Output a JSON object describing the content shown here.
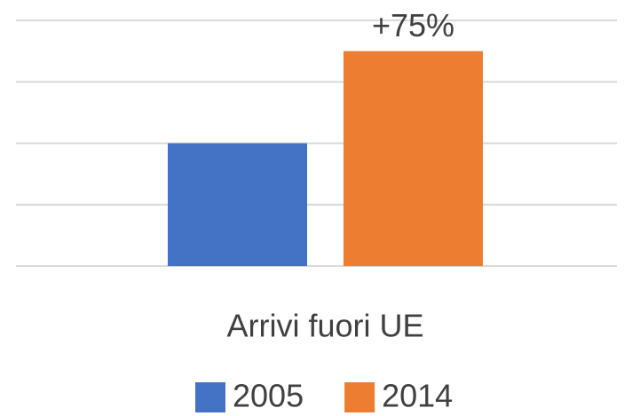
{
  "chart_data": {
    "type": "bar",
    "categories": [
      "Arrivi fuori UE"
    ],
    "series": [
      {
        "name": "2005",
        "color": "#4472c4",
        "values": [
          2
        ]
      },
      {
        "name": "2014",
        "color": "#ed7d31",
        "values": [
          3.5
        ]
      }
    ],
    "annotation": "+75%",
    "ylim": [
      0,
      4
    ],
    "yticks": [
      0,
      1,
      2,
      3,
      4
    ],
    "grid": true,
    "legend": "bottom"
  }
}
